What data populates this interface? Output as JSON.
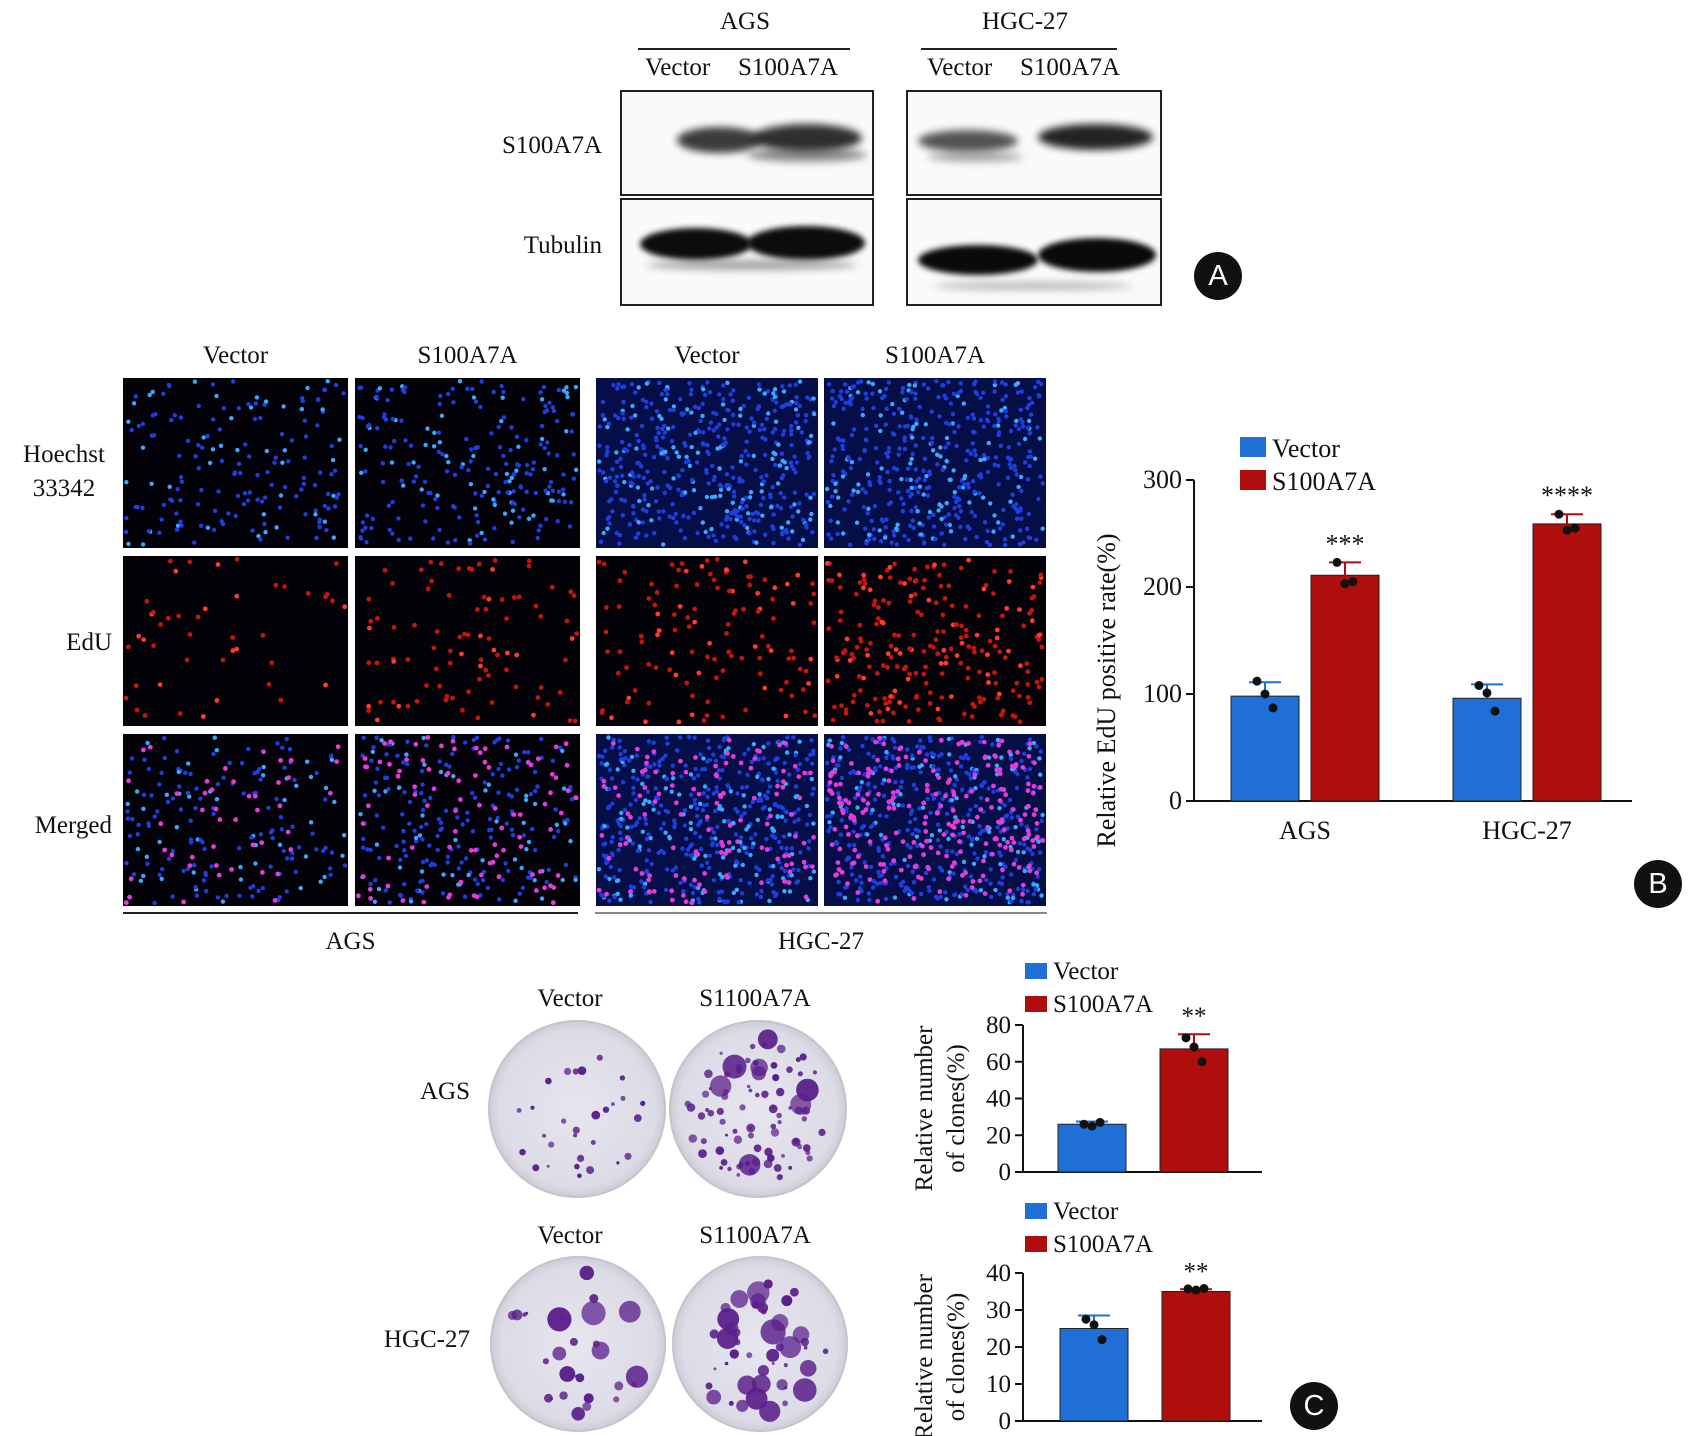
{
  "panel_a": {
    "badge": "A",
    "groups": [
      {
        "name": "AGS",
        "lanes": [
          "Vector",
          "S100A7A"
        ]
      },
      {
        "name": "HGC-27",
        "lanes": [
          "Vector",
          "S100A7A"
        ]
      }
    ],
    "row_labels": [
      "S100A7A",
      "Tubulin"
    ]
  },
  "panel_b": {
    "badge": "B",
    "column_labels": [
      "Vector",
      "S100A7A",
      "Vector",
      "S100A7A"
    ],
    "row_labels": [
      "Hoechst\n33342",
      "EdU",
      "Merged"
    ],
    "group_labels": [
      "AGS",
      "HGC-27"
    ]
  },
  "panel_c": {
    "badge": "C",
    "rows": [
      {
        "label": "AGS",
        "columns": [
          "Vector",
          "S1100A7A"
        ]
      },
      {
        "label": "HGC-27",
        "columns": [
          "Vector",
          "S1100A7A"
        ]
      }
    ]
  },
  "colors": {
    "vector": "#1f6fd6",
    "s100a7a": "#b00d0d"
  },
  "chart_data": [
    {
      "type": "bar",
      "id": "edu",
      "categories": [
        "AGS",
        "HGC-27"
      ],
      "series": [
        {
          "name": "Vector",
          "values": [
            98,
            96
          ],
          "errors": [
            13,
            13
          ],
          "points": [
            [
              112,
              100,
              87
            ],
            [
              108,
              101,
              84
            ]
          ]
        },
        {
          "name": "S100A7A",
          "values": [
            211,
            259
          ],
          "errors": [
            12,
            9
          ],
          "points": [
            [
              223,
              203,
              205
            ],
            [
              268,
              253,
              255
            ]
          ]
        }
      ],
      "ylabel": "Relative EdU positive rate(%)",
      "ylim": [
        0,
        300
      ],
      "yticks": [
        0,
        100,
        200,
        300
      ],
      "significance": [
        "***",
        "****"
      ],
      "legend": "top-left"
    },
    {
      "type": "bar",
      "id": "clones_ags",
      "categories": [
        ""
      ],
      "series": [
        {
          "name": "Vector",
          "values": [
            26
          ],
          "errors": [
            1.5
          ],
          "points": [
            [
              26,
              25,
              27
            ]
          ]
        },
        {
          "name": "S100A7A",
          "values": [
            67
          ],
          "errors": [
            8
          ],
          "points": [
            [
              73,
              68,
              60
            ]
          ]
        }
      ],
      "ylabel": "Relative number\nof clones(%)",
      "ylim": [
        0,
        80
      ],
      "yticks": [
        0,
        20,
        40,
        60,
        80
      ],
      "significance": [
        "**"
      ],
      "legend": "top-left"
    },
    {
      "type": "bar",
      "id": "clones_hgc",
      "categories": [
        ""
      ],
      "series": [
        {
          "name": "Vector",
          "values": [
            25
          ],
          "errors": [
            3.5
          ],
          "points": [
            [
              27.5,
              26,
              22
            ]
          ]
        },
        {
          "name": "S100A7A",
          "values": [
            35
          ],
          "errors": [
            0.6
          ],
          "points": [
            [
              35.7,
              35.4,
              35.8
            ]
          ]
        }
      ],
      "ylabel": "Relative number\nof clones(%)",
      "ylim": [
        0,
        40
      ],
      "yticks": [
        0,
        10,
        20,
        30,
        40
      ],
      "significance": [
        "**"
      ],
      "legend": "top-left"
    }
  ]
}
